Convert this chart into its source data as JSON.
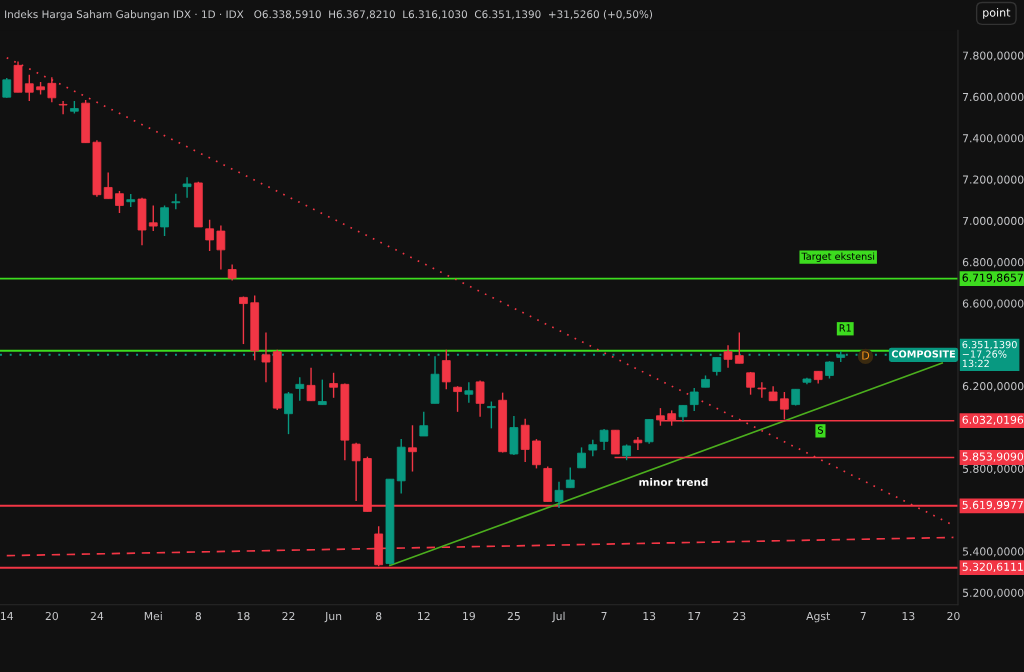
{
  "chart_data": {
    "type": "candlestick",
    "title": "Indeks Harga Saham Gabungan IDX · 1D · IDX   O6.338,5910  H6.367,8210  L6.316,1030  C6.351,1390  +31,5260 (+0,50%)",
    "ylim": [
      5141,
      7922
    ],
    "categories": [
      "14",
      null,
      null,
      null,
      "20",
      null,
      null,
      null,
      "24",
      null,
      null,
      null,
      null,
      "Mei",
      null,
      null,
      null,
      "8",
      null,
      null,
      null,
      "18",
      null,
      null,
      null,
      "22",
      null,
      null,
      null,
      "Jun",
      null,
      null,
      null,
      "8",
      null,
      null,
      null,
      "12",
      null,
      null,
      null,
      "19",
      null,
      null,
      null,
      "25",
      null,
      null,
      null,
      "Jul",
      null,
      null,
      null,
      "7",
      null,
      null,
      null,
      "13",
      null,
      null,
      null,
      "17",
      null,
      null,
      null,
      "23",
      null,
      null,
      null,
      null,
      null,
      null,
      "Agst",
      null,
      null,
      null,
      "7",
      null,
      null,
      null,
      "13",
      null,
      null,
      null,
      "20"
    ],
    "yticks": [
      {
        "value": 5200,
        "label": "5.200,0000"
      },
      {
        "value": 5400,
        "label": "5.400,0000"
      },
      {
        "value": 5800,
        "label": "5.800,0000"
      },
      {
        "value": 6200,
        "label": "6.200,0000"
      },
      {
        "value": 6600,
        "label": "6.600,0000"
      },
      {
        "value": 6800,
        "label": "6.800,0000"
      },
      {
        "value": 7000,
        "label": "7.000,0000"
      },
      {
        "value": 7200,
        "label": "7.200,0000"
      },
      {
        "value": 7400,
        "label": "7.400,0000"
      },
      {
        "value": 7600,
        "label": "7.600,0000"
      },
      {
        "value": 7800,
        "label": "7.800,0000"
      }
    ],
    "grid": false,
    "legend": false,
    "series": [
      {
        "type": "candlestick",
        "ohlc": [
          [
            7598,
            7691,
            7595,
            7682
          ],
          [
            7752,
            7771,
            7622,
            7622
          ],
          [
            7663,
            7706,
            7580,
            7622
          ],
          [
            7648,
            7672,
            7611,
            7634
          ],
          [
            7665,
            7695,
            7574,
            7595
          ],
          [
            7563,
            7580,
            7515,
            7560
          ],
          [
            7530,
            7580,
            7519,
            7543
          ],
          [
            7569,
            7584,
            7378,
            7378
          ],
          [
            7380,
            7389,
            7116,
            7126
          ],
          [
            7161,
            7233,
            7107,
            7107
          ],
          [
            7131,
            7144,
            7037,
            7074
          ],
          [
            7092,
            7129,
            7066,
            7102
          ],
          [
            7105,
            7111,
            6881,
            6955
          ],
          [
            6990,
            7074,
            6950,
            6974
          ],
          [
            6970,
            7074,
            6926,
            7063
          ],
          [
            7087,
            7131,
            7055,
            7092
          ],
          [
            7165,
            7211,
            7111,
            7178
          ],
          [
            7183,
            7189,
            6970,
            6970
          ],
          [
            6961,
            7005,
            6853,
            6907
          ],
          [
            6950,
            6977,
            6764,
            6859
          ],
          [
            6764,
            6788,
            6711,
            6722
          ],
          [
            6629,
            6633,
            6403,
            6599
          ],
          [
            6603,
            6638,
            6325,
            6370
          ],
          [
            6351,
            6459,
            6218,
            6316
          ],
          [
            6366,
            6375,
            6084,
            6093
          ],
          [
            6066,
            6171,
            5967,
            6162
          ],
          [
            6188,
            6242,
            6129,
            6208
          ],
          [
            6203,
            6288,
            6129,
            6129
          ],
          [
            6110,
            6231,
            6110,
            6125
          ],
          [
            6212,
            6264,
            6143,
            6194
          ],
          [
            6208,
            6212,
            5841,
            5938
          ],
          [
            5919,
            5925,
            5643,
            5838
          ],
          [
            5849,
            5858,
            5593,
            5593
          ],
          [
            5484,
            5521,
            5328,
            5335
          ],
          [
            5341,
            5749,
            5335,
            5749
          ],
          [
            5741,
            5943,
            5680,
            5904
          ],
          [
            5901,
            6010,
            5786,
            5882
          ],
          [
            5958,
            6075,
            5958,
            6008
          ],
          [
            6116,
            6344,
            6116,
            6257
          ],
          [
            6323,
            6375,
            6184,
            6220
          ],
          [
            6194,
            6199,
            6075,
            6173
          ],
          [
            6160,
            6218,
            6119,
            6177
          ],
          [
            6220,
            6227,
            6051,
            6116
          ],
          [
            6095,
            6125,
            5995,
            6101
          ],
          [
            6131,
            6168,
            5878,
            5882
          ],
          [
            5871,
            6055,
            5866,
            5999
          ],
          [
            6010,
            6042,
            5832,
            5893
          ],
          [
            5934,
            5943,
            5801,
            5819
          ],
          [
            5801,
            5810,
            5641,
            5641
          ],
          [
            5641,
            5736,
            5610,
            5695
          ],
          [
            5708,
            5806,
            5708,
            5745
          ],
          [
            5804,
            5903,
            5804,
            5875
          ],
          [
            5890,
            5940,
            5860,
            5916
          ],
          [
            5932,
            5992,
            5890,
            5986
          ],
          [
            5986,
            5986,
            5871,
            5871
          ],
          [
            5862,
            5917,
            5841,
            5910
          ],
          [
            5938,
            5953,
            5890,
            5925
          ],
          [
            5930,
            6038,
            5921,
            6038
          ],
          [
            6056,
            6093,
            6008,
            6036
          ],
          [
            6066,
            6082,
            6008,
            6036
          ],
          [
            6051,
            6106,
            6027,
            6106
          ],
          [
            6110,
            6190,
            6079,
            6171
          ],
          [
            6194,
            6251,
            6194,
            6232
          ],
          [
            6270,
            6338,
            6251,
            6338
          ],
          [
            6366,
            6397,
            6288,
            6329
          ],
          [
            6347,
            6459,
            6310,
            6310
          ],
          [
            6264,
            6268,
            6158,
            6194
          ],
          [
            6190,
            6218,
            6143,
            6186
          ],
          [
            6171,
            6199,
            6129,
            6129
          ],
          [
            6138,
            6171,
            6038,
            6088
          ],
          [
            6110,
            6184,
            6106,
            6184
          ],
          [
            6218,
            6240,
            6208,
            6234
          ],
          [
            6271,
            6271,
            6212,
            6231
          ],
          [
            6251,
            6320,
            6236,
            6316
          ],
          [
            6338.591,
            6367.821,
            6316.103,
            6351.139
          ],
          null,
          null,
          null,
          null,
          null,
          null,
          null,
          null,
          null,
          null
        ],
        "colors": [
          "#089981",
          "#f23645",
          "#f23645",
          "#f23645",
          "#f23645",
          "#f23645",
          "#089981",
          "#f23645",
          "#f23645",
          "#f23645",
          "#f23645",
          "#089981",
          "#f23645",
          "#f23645",
          "#089981",
          "#089981",
          "#089981",
          "#f23645",
          "#f23645",
          "#f23645",
          "#f23645",
          "#f23645",
          "#f23645",
          "#f23645",
          "#f23645",
          "#089981",
          "#089981",
          "#f23645",
          "#089981",
          "#f23645",
          "#f23645",
          "#f23645",
          "#f23645",
          "#f23645",
          "#089981",
          "#089981",
          "#f23645",
          "#089981",
          "#089981",
          "#f23645",
          "#f23645",
          "#089981",
          "#f23645",
          "#089981",
          "#f23645",
          "#089981",
          "#f23645",
          "#f23645",
          "#f23645",
          "#089981",
          "#089981",
          "#089981",
          "#089981",
          "#089981",
          "#f23645",
          "#089981",
          "#f23645",
          "#089981",
          "#f23645",
          "#f23645",
          "#089981",
          "#089981",
          "#089981",
          "#089981",
          "#f23645",
          "#f23645",
          "#f23645",
          "#f23645",
          "#f23645",
          "#f23645",
          "#089981",
          "#089981",
          "#f23645",
          "#089981",
          "#089981",
          null,
          null,
          null,
          null,
          null,
          null,
          null,
          null,
          null,
          null
        ]
      },
      {
        "type": "line",
        "values": [
          7789,
          null,
          null,
          null,
          null,
          null,
          null,
          null,
          null,
          null,
          null,
          null,
          null,
          null,
          null,
          null,
          null,
          null,
          null,
          null,
          null,
          null,
          null,
          null,
          null,
          null,
          null,
          null,
          null,
          null,
          null,
          null,
          null,
          null,
          null,
          null,
          null,
          null,
          null,
          null,
          null,
          null,
          null,
          null,
          null,
          null,
          null,
          null,
          null,
          null,
          null,
          null,
          null,
          null,
          null,
          null,
          null,
          null,
          null,
          null,
          null,
          null,
          null,
          null,
          null,
          null,
          null,
          null,
          null,
          null,
          null,
          null,
          null,
          null,
          null,
          null,
          null,
          null,
          null,
          null,
          null,
          null,
          null,
          null,
          5526
        ],
        "color": "#f23645",
        "line_style": "dotted"
      },
      {
        "type": "line",
        "values": [
          5379,
          null,
          null,
          null,
          null,
          null,
          null,
          null,
          null,
          null,
          null,
          null,
          null,
          null,
          null,
          null,
          null,
          null,
          null,
          null,
          null,
          null,
          null,
          null,
          null,
          null,
          null,
          null,
          null,
          null,
          null,
          null,
          null,
          null,
          null,
          null,
          null,
          null,
          null,
          null,
          null,
          null,
          null,
          null,
          null,
          null,
          null,
          null,
          null,
          null,
          null,
          null,
          null,
          null,
          null,
          null,
          null,
          null,
          null,
          null,
          null,
          null,
          null,
          null,
          null,
          null,
          null,
          null,
          null,
          null,
          null,
          null,
          null,
          null,
          null,
          null,
          null,
          null,
          null,
          null,
          null,
          null,
          null,
          null,
          5467
        ],
        "color": "#f23645",
        "line_style": "dashed"
      },
      {
        "type": "line",
        "values": [
          null,
          null,
          null,
          null,
          null,
          null,
          null,
          null,
          null,
          null,
          null,
          null,
          null,
          null,
          null,
          null,
          null,
          null,
          null,
          null,
          null,
          null,
          null,
          null,
          null,
          null,
          null,
          null,
          null,
          null,
          null,
          null,
          null,
          null,
          5331,
          null,
          null,
          null,
          null,
          null,
          null,
          null,
          null,
          null,
          null,
          null,
          null,
          null,
          null,
          null,
          null,
          null,
          null,
          null,
          null,
          null,
          null,
          null,
          null,
          null,
          null,
          null,
          null,
          null,
          null,
          null,
          null,
          null,
          null,
          null,
          null,
          null,
          null,
          null,
          null,
          null,
          null,
          null,
          null,
          null,
          null,
          null,
          null,
          6311,
          null
        ],
        "color": "#4caf1e",
        "line_style": "solid"
      },
      {
        "type": "line",
        "name": "6.032,0196",
        "values": [
          null,
          null,
          null,
          null,
          null,
          null,
          null,
          null,
          null,
          null,
          null,
          null,
          null,
          null,
          null,
          null,
          null,
          null,
          null,
          null,
          null,
          null,
          null,
          null,
          null,
          null,
          null,
          null,
          null,
          null,
          null,
          null,
          null,
          null,
          null,
          null,
          null,
          null,
          null,
          null,
          null,
          null,
          null,
          null,
          null,
          null,
          null,
          null,
          null,
          null,
          null,
          null,
          null,
          null,
          null,
          null,
          null,
          null,
          6032.0196,
          null,
          null,
          null,
          null,
          null,
          null,
          null,
          null,
          null,
          null,
          null,
          null,
          null,
          null,
          null,
          null,
          null,
          null,
          null,
          null,
          null,
          null,
          null,
          null,
          null,
          6032.0196
        ],
        "color": "#f23645",
        "line_style": "solid"
      },
      {
        "type": "line",
        "name": "5.853,9090",
        "values": [
          null,
          null,
          null,
          null,
          null,
          null,
          null,
          null,
          null,
          null,
          null,
          null,
          null,
          null,
          null,
          null,
          null,
          null,
          null,
          null,
          null,
          null,
          null,
          null,
          null,
          null,
          null,
          null,
          null,
          null,
          null,
          null,
          null,
          null,
          null,
          null,
          null,
          null,
          null,
          null,
          null,
          null,
          null,
          null,
          null,
          null,
          null,
          null,
          null,
          null,
          null,
          null,
          null,
          null,
          5853.909,
          null,
          null,
          null,
          null,
          null,
          null,
          null,
          null,
          null,
          null,
          null,
          null,
          null,
          null,
          null,
          null,
          null,
          null,
          null,
          null,
          null,
          null,
          null,
          null,
          null,
          null,
          null,
          null,
          null,
          5853.909
        ],
        "color": "#f23645",
        "line_style": "solid"
      }
    ],
    "ref_lines": [
      {
        "axis": "y",
        "value": 6719.8657,
        "label": "6.719,8657",
        "color": "#3ddc1f",
        "line_style": "solid"
      },
      {
        "axis": "y",
        "value": 6371,
        "label": null,
        "color": "#3ddc1f",
        "line_style": "solid"
      },
      {
        "axis": "y",
        "value": 6351.139,
        "label": null,
        "color": "#089981",
        "line_style": "dotted"
      },
      {
        "axis": "y",
        "value": 5619.9977,
        "label": "5.619,9977",
        "color": "#f23645",
        "line_style": "solid"
      },
      {
        "axis": "y",
        "value": 5320.6111,
        "label": "5.320,6111",
        "color": "#f23645",
        "line_style": "solid"
      }
    ],
    "annotations": [
      "point",
      "Target ekstensi",
      {
        "text": "R1",
        "y": 6477
      },
      {
        "text": "S",
        "y": 5983
      },
      "minor trend",
      {
        "text": "D",
        "y": 6343
      },
      {
        "text": "COMPOSITE",
        "y": 6351.139
      },
      "6.351,1390\n−17,26%\n13:22"
    ]
  }
}
